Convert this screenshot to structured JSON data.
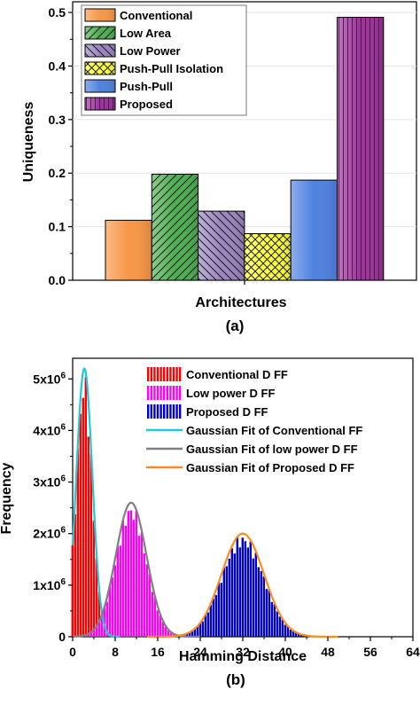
{
  "chart_data": [
    {
      "type": "bar",
      "panel_label": "(a)",
      "xlabel": "Architectures",
      "ylabel": "Uniqueness",
      "ylim": [
        0,
        0.52
      ],
      "yticks": [
        "0.0",
        "0.1",
        "0.2",
        "0.3",
        "0.4",
        "0.5"
      ],
      "grid": false,
      "legend_position": "top-left",
      "series": [
        {
          "name": "Conventional",
          "value": 0.112,
          "color": "#f79646",
          "hatch": "none"
        },
        {
          "name": "Low Area",
          "value": 0.198,
          "color": "#4caf50",
          "hatch": "diag"
        },
        {
          "name": "Low Power",
          "value": 0.129,
          "color": "#9a85c0",
          "hatch": "diag-back"
        },
        {
          "name": "Push-Pull Isolation",
          "value": 0.087,
          "color": "#ffff33",
          "hatch": "cross"
        },
        {
          "name": "Push-Pull",
          "value": 0.187,
          "color": "#4f81e0",
          "hatch": "none"
        },
        {
          "name": "Proposed",
          "value": 0.491,
          "color": "#993399",
          "hatch": "vertical"
        }
      ]
    },
    {
      "type": "bar",
      "panel_label": "(b)",
      "xlabel": "Hamming Distance",
      "ylabel": "Frequency",
      "xlim": [
        0,
        64
      ],
      "ylim": [
        0,
        5.4
      ],
      "xticks": [
        "0",
        "8",
        "16",
        "24",
        "32",
        "40",
        "48",
        "56",
        "64"
      ],
      "yticks": [
        "0",
        "1x10",
        "2x10",
        "3x10",
        "4x10",
        "5x10"
      ],
      "ytick_exponent": "6",
      "legend_position": "top-right",
      "series": [
        {
          "name": "Conventional D FF",
          "kind": "histogram",
          "mean": 2.2,
          "sd": 1.5,
          "peak": 5.2,
          "color": "#ff0000"
        },
        {
          "name": "Low power D FF",
          "kind": "histogram",
          "mean": 11,
          "sd": 2.9,
          "peak": 2.6,
          "color": "#ff00ff"
        },
        {
          "name": "Proposed D FF",
          "kind": "histogram",
          "mean": 32,
          "sd": 4.0,
          "peak": 2.0,
          "color": "#0000cc"
        },
        {
          "name": "Gaussian Fit of Conventional FF",
          "kind": "fit",
          "mean": 2.2,
          "sd": 1.5,
          "peak": 5.2,
          "color": "#1ec8d8"
        },
        {
          "name": "Gaussian Fit of low power D FF",
          "kind": "fit",
          "mean": 11,
          "sd": 2.9,
          "peak": 2.6,
          "color": "#808080"
        },
        {
          "name": "Gaussian Fit of Proposed D FF",
          "kind": "fit",
          "mean": 32,
          "sd": 4.0,
          "peak": 2.0,
          "color": "#ff8c1a"
        }
      ]
    }
  ]
}
